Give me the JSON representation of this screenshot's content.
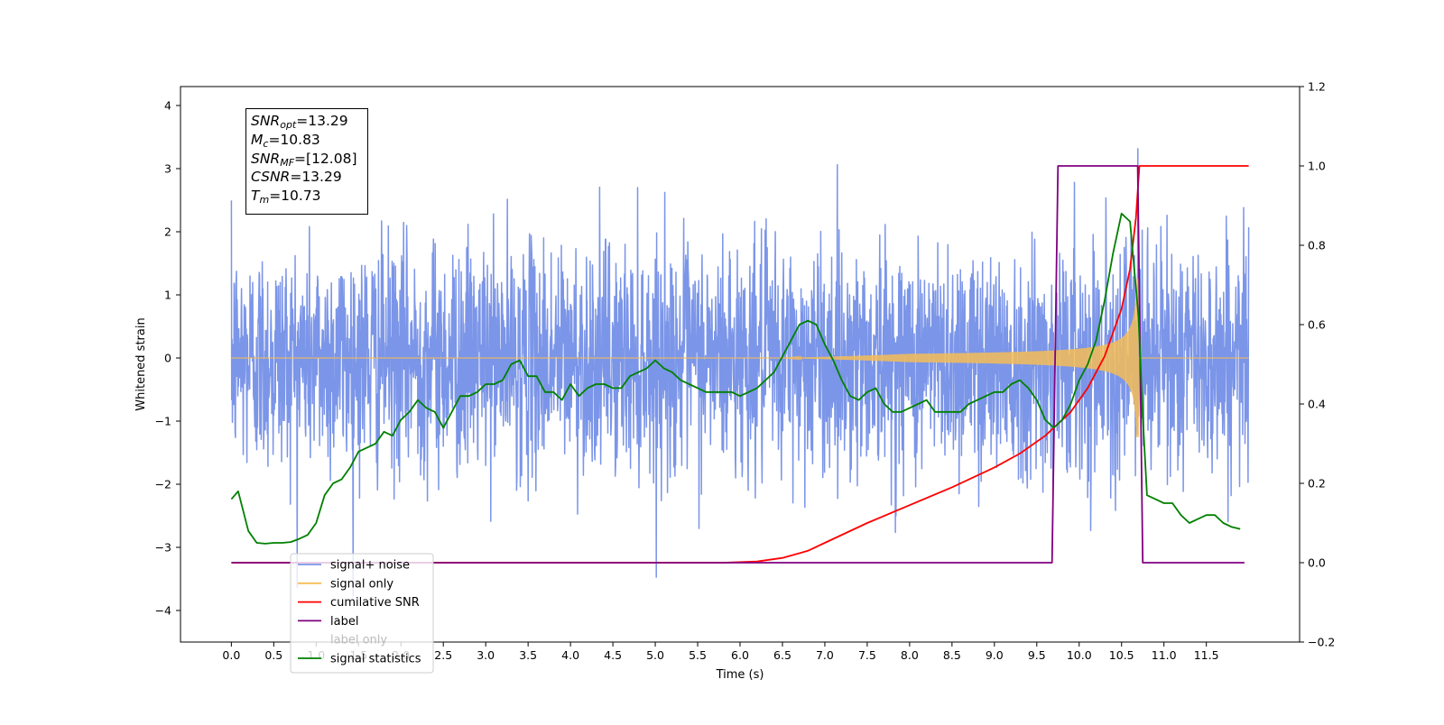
{
  "chart_data": {
    "type": "line",
    "xlabel": "Time (s)",
    "ylabel": "Whitened strain",
    "x_ticks": [
      "0.0",
      "0.5",
      "1.0",
      "1.5",
      "2.0",
      "2.5",
      "3.0",
      "3.5",
      "4.0",
      "4.5",
      "5.0",
      "5.5",
      "6.0",
      "6.5",
      "7.0",
      "7.5",
      "8.0",
      "8.5",
      "9.0",
      "9.5",
      "10.0",
      "10.5",
      "11.0",
      "11.5"
    ],
    "y_ticks_left": [
      "4",
      "3",
      "2",
      "1",
      "0",
      "−1",
      "−2",
      "−3",
      "−4"
    ],
    "y_ticks_right": [
      "1.2",
      "1.0",
      "0.8",
      "0.6",
      "0.4",
      "0.2",
      "0.0",
      "−0.2"
    ],
    "xlim": [
      -0.6,
      12.6
    ],
    "ylim_left": [
      -4.5,
      4.3
    ],
    "ylim_right": [
      -0.2,
      1.2
    ],
    "annotation": {
      "snr_opt_sym": "SNR",
      "snr_opt_sub": "opt",
      "snr_opt_val": "=13.29",
      "mc_sym": "M",
      "mc_sub": "c",
      "mc_val": "=10.83",
      "snr_mf_sym": "SNR",
      "snr_mf_sub": "MF",
      "snr_mf_val": "=[12.08]",
      "csnr_sym": "CSNR",
      "csnr_val": "=13.29",
      "tm_sym": "T",
      "tm_sub": "m",
      "tm_val": "=10.73"
    },
    "legend_position": "lower-left",
    "series": [
      {
        "name": "signal+ noise",
        "color": "#7b95e8",
        "axis": "left",
        "description_values": {
          "x_range": [
            0.0,
            12.0
          ],
          "noise_std": 0.9
        }
      },
      {
        "name": "signal only",
        "color": "#f5bd57",
        "axis": "left",
        "description_values": {
          "chirp_start": 6.5,
          "chirp_peak_time": 10.7,
          "peak_amplitude": 1.8
        }
      },
      {
        "name": "cumilative SNR",
        "color": "#ff0000",
        "axis": "right",
        "x": [
          0.0,
          5.8,
          6.2,
          6.5,
          6.8,
          7.0,
          7.5,
          8.0,
          8.5,
          9.0,
          9.3,
          9.6,
          9.9,
          10.1,
          10.3,
          10.5,
          10.6,
          10.67,
          10.71,
          10.75,
          11.5,
          12.0
        ],
        "y": [
          0.0,
          0.0,
          0.003,
          0.012,
          0.03,
          0.05,
          0.1,
          0.145,
          0.19,
          0.24,
          0.275,
          0.32,
          0.38,
          0.44,
          0.52,
          0.64,
          0.74,
          0.87,
          1.0,
          1.0,
          1.0,
          1.0
        ]
      },
      {
        "name": "label",
        "color": "#800080",
        "axis": "right",
        "x": [
          0.0,
          9.68,
          9.75,
          10.69,
          10.75,
          11.95
        ],
        "y": [
          0.0,
          0.0,
          1.0,
          1.0,
          0.0,
          0.0
        ]
      },
      {
        "name": "label only",
        "hidden_in_plot": true
      },
      {
        "name": "signal statistics",
        "color": "#008000",
        "axis": "right",
        "x": [
          0.0,
          0.08,
          0.2,
          0.3,
          0.4,
          0.5,
          0.6,
          0.7,
          0.8,
          0.9,
          1.0,
          1.1,
          1.2,
          1.3,
          1.4,
          1.5,
          1.6,
          1.7,
          1.8,
          1.9,
          2.0,
          2.1,
          2.2,
          2.3,
          2.4,
          2.5,
          2.6,
          2.7,
          2.8,
          2.9,
          3.0,
          3.1,
          3.2,
          3.3,
          3.4,
          3.5,
          3.6,
          3.7,
          3.8,
          3.9,
          4.0,
          4.1,
          4.2,
          4.3,
          4.4,
          4.5,
          4.6,
          4.7,
          4.8,
          4.9,
          5.0,
          5.1,
          5.2,
          5.3,
          5.4,
          5.5,
          5.6,
          5.7,
          5.8,
          5.9,
          6.0,
          6.1,
          6.2,
          6.3,
          6.4,
          6.5,
          6.6,
          6.7,
          6.8,
          6.9,
          7.0,
          7.1,
          7.2,
          7.3,
          7.4,
          7.5,
          7.6,
          7.7,
          7.8,
          7.9,
          8.0,
          8.1,
          8.2,
          8.3,
          8.4,
          8.5,
          8.6,
          8.7,
          8.8,
          8.9,
          9.0,
          9.1,
          9.2,
          9.3,
          9.4,
          9.5,
          9.6,
          9.7,
          9.8,
          9.9,
          10.0,
          10.1,
          10.2,
          10.3,
          10.4,
          10.5,
          10.6,
          10.7,
          10.75,
          10.8,
          10.9,
          11.0,
          11.1,
          11.2,
          11.3,
          11.4,
          11.5,
          11.6,
          11.7,
          11.8,
          11.9
        ],
        "y": [
          0.16,
          0.18,
          0.08,
          0.05,
          0.048,
          0.05,
          0.05,
          0.052,
          0.06,
          0.07,
          0.1,
          0.17,
          0.2,
          0.21,
          0.24,
          0.28,
          0.29,
          0.3,
          0.33,
          0.32,
          0.36,
          0.38,
          0.41,
          0.39,
          0.38,
          0.34,
          0.38,
          0.42,
          0.42,
          0.43,
          0.45,
          0.45,
          0.46,
          0.5,
          0.51,
          0.47,
          0.47,
          0.43,
          0.43,
          0.41,
          0.45,
          0.42,
          0.44,
          0.45,
          0.45,
          0.44,
          0.44,
          0.47,
          0.48,
          0.49,
          0.51,
          0.49,
          0.48,
          0.46,
          0.45,
          0.44,
          0.43,
          0.43,
          0.43,
          0.43,
          0.42,
          0.43,
          0.44,
          0.46,
          0.48,
          0.52,
          0.56,
          0.6,
          0.61,
          0.6,
          0.55,
          0.51,
          0.46,
          0.42,
          0.41,
          0.43,
          0.44,
          0.4,
          0.38,
          0.38,
          0.39,
          0.4,
          0.41,
          0.38,
          0.38,
          0.38,
          0.38,
          0.4,
          0.41,
          0.42,
          0.43,
          0.43,
          0.45,
          0.46,
          0.44,
          0.41,
          0.36,
          0.34,
          0.36,
          0.4,
          0.46,
          0.5,
          0.56,
          0.66,
          0.78,
          0.88,
          0.86,
          0.62,
          0.37,
          0.17,
          0.16,
          0.15,
          0.15,
          0.12,
          0.1,
          0.11,
          0.12,
          0.12,
          0.1,
          0.09,
          0.085
        ]
      }
    ]
  },
  "legend": {
    "items": [
      {
        "label": "signal+ noise",
        "color": "#7b95e8"
      },
      {
        "label": "signal only",
        "color": "#f5bd57"
      },
      {
        "label": "cumilative SNR",
        "color": "#ff0000"
      },
      {
        "label": "label",
        "color": "#800080"
      },
      {
        "label": "label only",
        "color": "#000000"
      },
      {
        "label": "signal statistics",
        "color": "#008000"
      }
    ]
  }
}
